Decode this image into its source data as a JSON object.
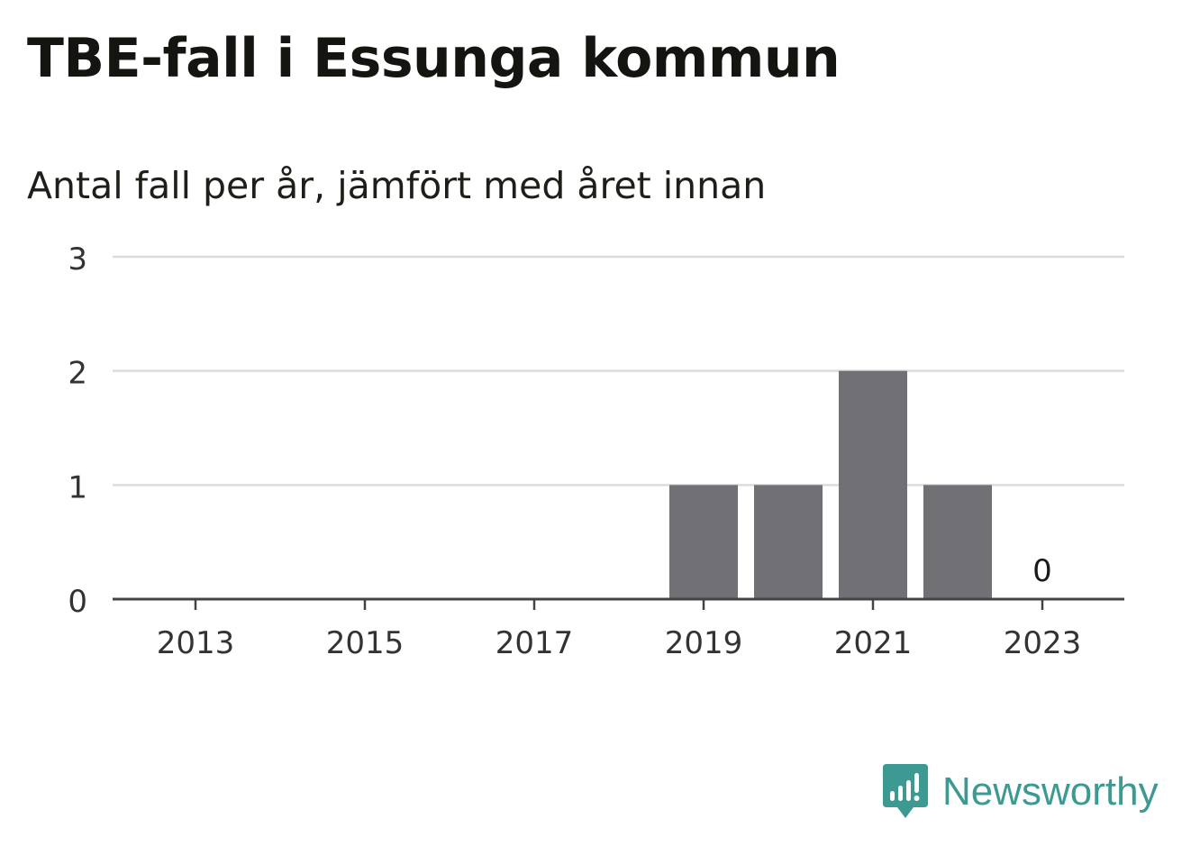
{
  "chart_data": {
    "type": "bar",
    "title": "TBE-fall i Essunga kommun",
    "subtitle": "Antal fall per år, jämfört med året innan",
    "x": [
      2013,
      2014,
      2015,
      2016,
      2017,
      2018,
      2019,
      2020,
      2021,
      2022,
      2023
    ],
    "values": [
      0,
      0,
      0,
      0,
      0,
      0,
      1,
      1,
      2,
      1,
      0
    ],
    "x_ticks": [
      "2013",
      "2015",
      "2017",
      "2019",
      "2021",
      "2023"
    ],
    "y_ticks": [
      "0",
      "1",
      "2",
      "3"
    ],
    "ylim": [
      0,
      3
    ],
    "grid": true,
    "data_labels": [
      {
        "x": 2023,
        "text": "0"
      }
    ],
    "bar_color": "#717075"
  },
  "brand": {
    "name": "Newsworthy",
    "color": "#3d9a92"
  }
}
